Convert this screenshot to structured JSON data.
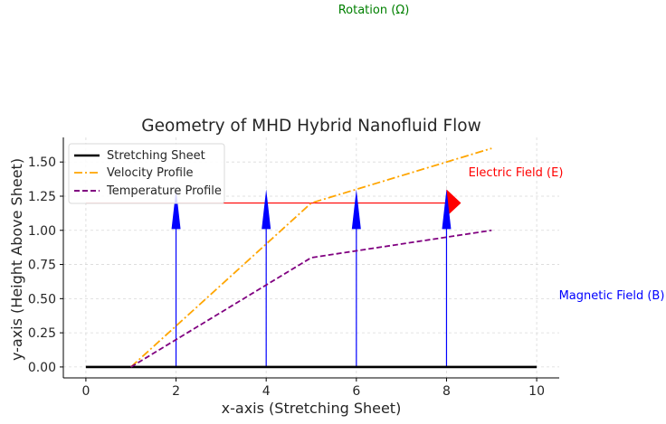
{
  "chart_data": {
    "type": "line",
    "title": "Geometry of MHD Hybrid Nanofluid Flow",
    "xlabel": "x-axis (Stretching Sheet)",
    "ylabel": "y-axis (Height Above Sheet)",
    "xlim": [
      -0.5,
      10.5
    ],
    "ylim": [
      -0.08,
      1.68
    ],
    "xticks": [
      0,
      2,
      4,
      6,
      8,
      10
    ],
    "yticks": [
      0.0,
      0.25,
      0.5,
      0.75,
      1.0,
      1.25,
      1.5
    ],
    "xtick_labels": [
      "0",
      "2",
      "4",
      "6",
      "8",
      "10"
    ],
    "ytick_labels": [
      "0.00",
      "0.25",
      "0.50",
      "0.75",
      "1.00",
      "1.25",
      "1.50"
    ],
    "grid": true,
    "legend_position": "upper-left",
    "series": [
      {
        "name": "Stretching Sheet",
        "style": "solid",
        "color": "#000000",
        "x": [
          0,
          10
        ],
        "y": [
          0,
          0
        ]
      },
      {
        "name": "Velocity Profile",
        "style": "dashdot",
        "color": "#ffa500",
        "x": [
          1,
          2,
          3,
          4,
          5,
          6,
          7,
          8,
          9
        ],
        "y": [
          0.0,
          0.3,
          0.6,
          0.9,
          1.2,
          1.3,
          1.4,
          1.5,
          1.6
        ]
      },
      {
        "name": "Temperature Profile",
        "style": "dashed",
        "color": "#800080",
        "x": [
          1,
          2,
          3,
          4,
          5,
          6,
          7,
          8,
          9
        ],
        "y": [
          0.0,
          0.2,
          0.4,
          0.6,
          0.8,
          0.85,
          0.9,
          0.95,
          1.0
        ]
      }
    ],
    "electric_field": {
      "color": "#ff0000",
      "x_start": 0,
      "x_end": 8,
      "y": 1.2
    },
    "magnetic_field_arrows": {
      "color": "#0000ff",
      "x": [
        2,
        4,
        6,
        8
      ],
      "y_start": 0,
      "y_end": 1.3
    },
    "annotations": {
      "rotation": {
        "text": "Rotation (Ω)",
        "color": "#008000"
      },
      "electric": {
        "text": "Electric Field (E)",
        "color": "#ff0000"
      },
      "magnetic": {
        "text": "Magnetic Field (B)",
        "color": "#0000ff"
      }
    }
  }
}
